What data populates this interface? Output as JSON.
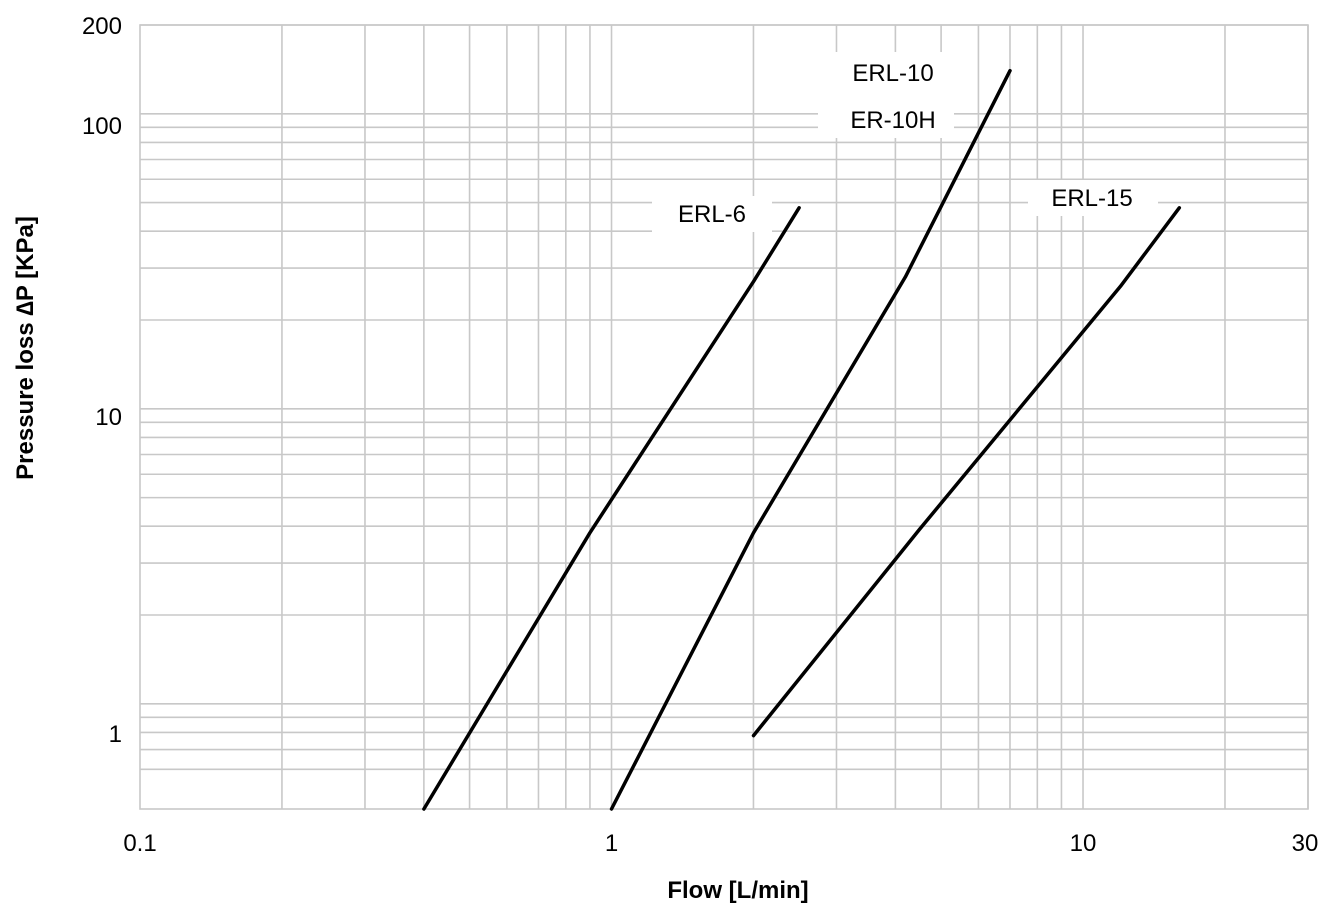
{
  "chart_data": {
    "type": "line",
    "xlabel": "Flow [L/min]",
    "ylabel": "Pressure loss ∆P [KPa]",
    "x_scale": "log",
    "y_scale": "log",
    "xlim": [
      0.1,
      30
    ],
    "ylim": [
      0.44,
      200
    ],
    "x_ticks": [
      {
        "value": 0.1,
        "label": "0.1"
      },
      {
        "value": 1,
        "label": "1"
      },
      {
        "value": 10,
        "label": "10"
      },
      {
        "value": 30,
        "label": "30"
      }
    ],
    "y_ticks": [
      {
        "value": 1,
        "label": "1"
      },
      {
        "value": 10,
        "label": "10"
      },
      {
        "value": 100,
        "label": "100"
      },
      {
        "value": 200,
        "label": "200"
      }
    ],
    "x_grid": [
      0.2,
      0.3,
      0.4,
      0.5,
      0.6,
      0.7,
      0.8,
      0.9,
      1,
      2,
      3,
      4,
      5,
      6,
      7,
      8,
      9,
      10,
      20,
      30
    ],
    "y_grid": [
      0.6,
      0.7,
      0.8,
      0.9,
      1,
      2,
      3,
      4,
      5,
      6,
      7,
      8,
      9,
      10,
      20,
      30,
      40,
      50,
      60,
      70,
      80,
      90,
      100,
      200
    ],
    "grid": true,
    "legend": "none",
    "series": [
      {
        "name": "ERL-6",
        "labels": [
          "ERL-6"
        ],
        "x": [
          0.4,
          0.9,
          2,
          2.5
        ],
        "y": [
          0.44,
          3.8,
          27,
          48
        ]
      },
      {
        "name": "ERL-10 / ER-10H",
        "labels": [
          "ERL-10",
          "ER-10H"
        ],
        "x": [
          1,
          2,
          4.2,
          7
        ],
        "y": [
          0.44,
          3.8,
          28,
          140
        ]
      },
      {
        "name": "ERL-15",
        "labels": [
          "ERL-15"
        ],
        "x": [
          2,
          4.5,
          12,
          16
        ],
        "y": [
          0.78,
          3.9,
          26,
          48
        ]
      }
    ]
  }
}
